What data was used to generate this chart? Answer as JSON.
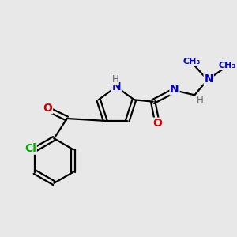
{
  "bg_color": "#e8e8e8",
  "bond_color": "#000000",
  "bond_width": 1.6,
  "atom_colors": {
    "N": "#0000cc",
    "O": "#cc0000",
    "Cl": "#00aa00",
    "C": "#000000",
    "H": "#666666"
  },
  "font_size_atoms": 10,
  "font_size_h": 8.5,
  "font_size_small": 8
}
